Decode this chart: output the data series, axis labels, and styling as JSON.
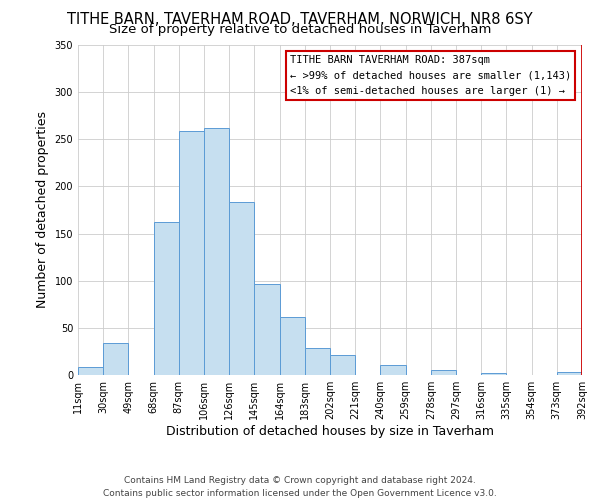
{
  "title": "TITHE BARN, TAVERHAM ROAD, TAVERHAM, NORWICH, NR8 6SY",
  "subtitle": "Size of property relative to detached houses in Taverham",
  "xlabel": "Distribution of detached houses by size in Taverham",
  "ylabel": "Number of detached properties",
  "bar_values": [
    9,
    34,
    0,
    162,
    259,
    262,
    184,
    96,
    62,
    29,
    21,
    0,
    11,
    0,
    5,
    0,
    2,
    0,
    0,
    3
  ],
  "bar_labels": [
    "11sqm",
    "30sqm",
    "49sqm",
    "68sqm",
    "87sqm",
    "106sqm",
    "126sqm",
    "145sqm",
    "164sqm",
    "183sqm",
    "202sqm",
    "221sqm",
    "240sqm",
    "259sqm",
    "278sqm",
    "297sqm",
    "316sqm",
    "335sqm",
    "354sqm",
    "373sqm",
    "392sqm"
  ],
  "bar_color": "#c6dff0",
  "bar_edge_color": "#5b9bd5",
  "grid_color": "#cccccc",
  "annotation_box_color": "#cc0000",
  "annotation_title": "TITHE BARN TAVERHAM ROAD: 387sqm",
  "annotation_line1": "← >99% of detached houses are smaller (1,143)",
  "annotation_line2": "<1% of semi-detached houses are larger (1) →",
  "marker_line_color": "#cc0000",
  "ylim": [
    0,
    350
  ],
  "yticks": [
    0,
    50,
    100,
    150,
    200,
    250,
    300,
    350
  ],
  "footer1": "Contains HM Land Registry data © Crown copyright and database right 2024.",
  "footer2": "Contains public sector information licensed under the Open Government Licence v3.0.",
  "bg_color": "#ffffff",
  "title_fontsize": 10.5,
  "subtitle_fontsize": 9.5,
  "axis_label_fontsize": 9,
  "tick_fontsize": 7,
  "footer_fontsize": 6.5,
  "annotation_fontsize": 7.5
}
